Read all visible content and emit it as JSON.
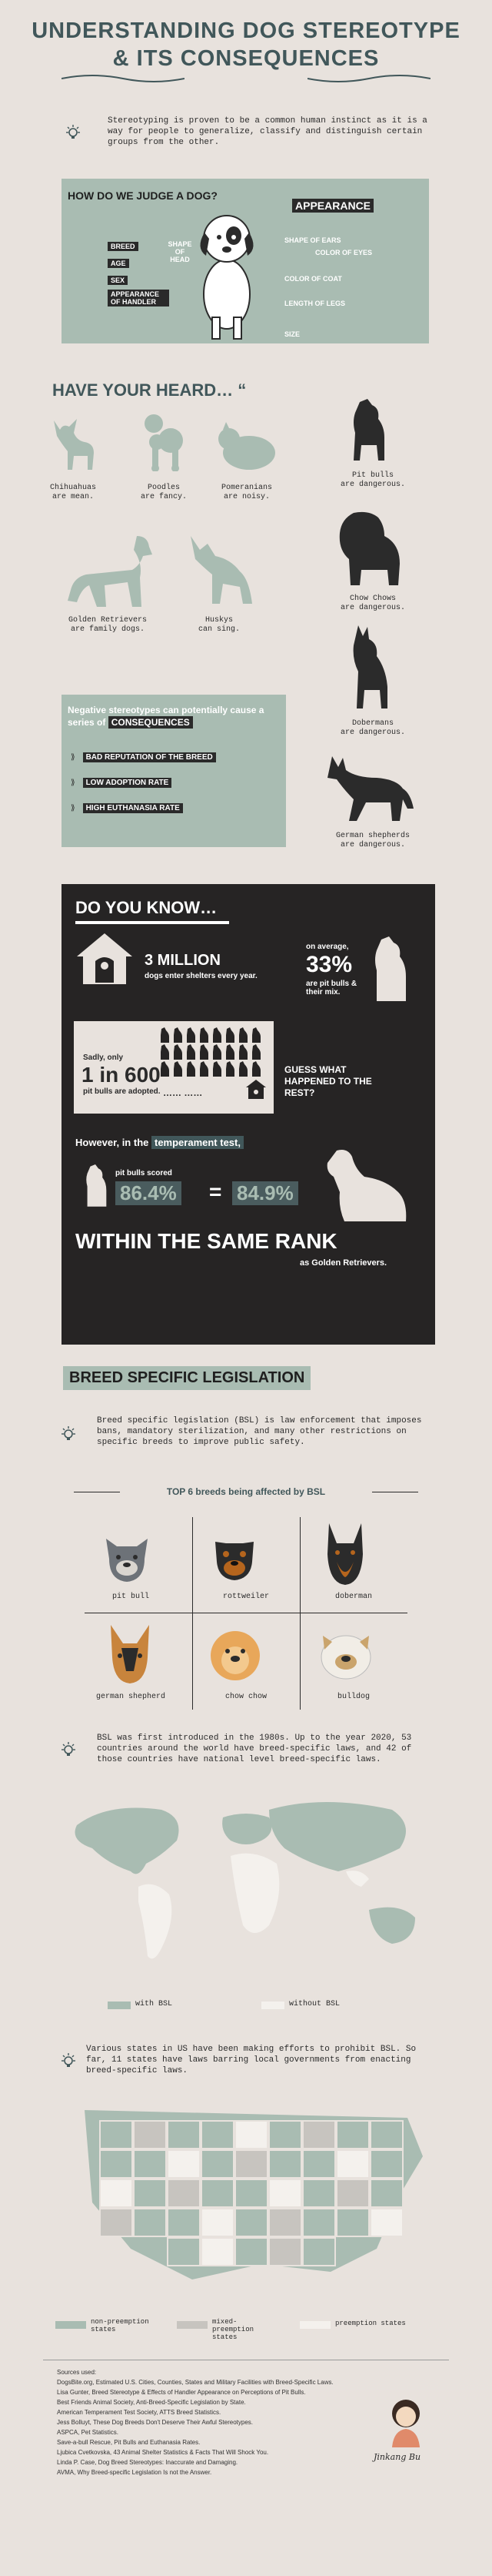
{
  "title": {
    "line1": "UNDERSTANDING DOG STEREOTYPE",
    "line2": "& ITS CONSEQUENCES"
  },
  "intro": "Stereotyping is proven to be a common human instinct as it is a way for people to generalize, classify and distinguish certain groups from the other.",
  "judge": {
    "heading": "HOW DO WE JUDGE A DOG?",
    "appearance": "APPEARANCE",
    "labels_left": [
      "BREED",
      "AGE",
      "SEX",
      "APPEARANCE OF HANDLER"
    ],
    "shape_of_head": "SHAPE OF HEAD",
    "labels_right": [
      "SHAPE OF EARS",
      "COLOR OF EYES",
      "COLOR OF COAT",
      "LENGTH OF LEGS",
      "SIZE"
    ]
  },
  "heard": {
    "heading": "HAVE YOUR HEARD… “",
    "items": [
      {
        "name": "Chihuahuas",
        "claim": "are mean."
      },
      {
        "name": "Poodles",
        "claim": "are fancy."
      },
      {
        "name": "Pomeranians",
        "claim": "are noisy."
      },
      {
        "name": "Golden Retrievers",
        "claim": "are family dogs."
      },
      {
        "name": "Huskys",
        "claim": "can sing."
      },
      {
        "name": "Pit bulls",
        "claim": "are dangerous."
      },
      {
        "name": "Chow Chows",
        "claim": "are dangerous."
      },
      {
        "name": "Dobermans",
        "claim": "are dangerous."
      },
      {
        "name": "German shepherds",
        "claim": "are dangerous."
      }
    ]
  },
  "consequences": {
    "text": "Negative stereotypes can potentially cause a series of",
    "highlight": "CONSEQUENCES",
    "items": [
      "BAD REPUTATION OF THE BREED",
      "LOW ADOPTION RATE",
      "HIGH EUTHANASIA RATE"
    ]
  },
  "know": {
    "heading": "DO YOU KNOW…",
    "million": "3 MILLION",
    "million_sub": "dogs enter shelters every year.",
    "avg": "on average,",
    "pct33": "33%",
    "pct33_sub": "are pit bulls & their mix.",
    "sadly": "Sadly, only",
    "one_in": "1 in 600",
    "adopted": "pit bulls are adopted.",
    "dots": "……  ……",
    "guess": "GUESS WHAT HAPPENED TO THE REST?",
    "however": "However, in the",
    "temp": "temperament test,",
    "scored": "pit bulls scored",
    "v1": "86.4%",
    "eq": "=",
    "v2": "84.9%",
    "rank": "WITHIN THE SAME RANK",
    "as": "as Golden Retrievers."
  },
  "bsl": {
    "heading": "BREED SPECIFIC LEGISLATION",
    "desc": "Breed specific legislation (BSL) is law enforcement that imposes bans, mandatory sterilization, and many other restrictions on specific breeds to improve public safety.",
    "top6": "TOP 6 breeds being affected by BSL",
    "breeds": [
      "pit bull",
      "rottweiler",
      "doberman",
      "german shepherd",
      "chow chow",
      "bulldog"
    ],
    "history": "BSL was first introduced in the 1980s. Up to the year 2020, 53 countries around the world have breed-specific laws, and 42 of those countries have national level breed-specific laws.",
    "legend_with": "with BSL",
    "legend_without": "without BSL",
    "us_text": "Various states in US have been making efforts to prohibit BSL. So far, 11 states have laws barring local governments from enacting breed-specific laws.",
    "us_legend": [
      "non-preemption states",
      "mixed-preemption states",
      "preemption states"
    ]
  },
  "sources": {
    "heading": "Sources used:",
    "items": [
      "DogsBite.org, Estimated U.S. Cities, Counties, States and Military Facilities with Breed-Specific Laws.",
      "Lisa Gunter, Breed Stereotype & Effects of Handler Appearance on Perceptions of Pit Bulls.",
      "Best Friends Animal Society, Anti-Breed-Specific Legislation by State.",
      "American Temperament Test Society, ATTS Breed Statistics.",
      "Jess Bolluyt, These Dog Breeds Don't Deserve Their Awful Stereotypes.",
      "ASPCA, Pet Statistics.",
      "Save-a-bull Rescue, Pit Bulls and Euthanasia Rates.",
      "Ljubica Cvetkovska, 43 Animal Shelter Statistics & Facts That Will Shock You.",
      "Linda P. Case, Dog Breed Stereotypes: Inaccurate and Damaging.",
      "AVMA, Why Breed-specific Legislation Is not the Answer."
    ],
    "signature": "Jinkang Bu"
  },
  "colors": {
    "sage": "#a9bcb2",
    "dark": "#262424",
    "teal_text": "#41575a",
    "bg": "#e8e2dd"
  }
}
